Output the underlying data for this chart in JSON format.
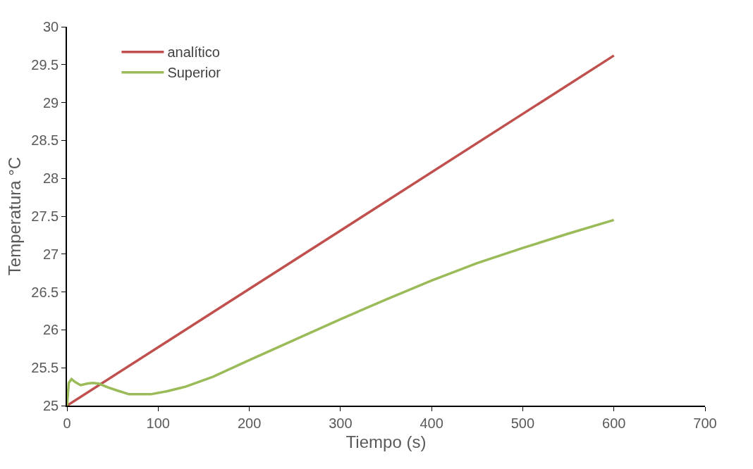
{
  "chart_data": {
    "type": "line",
    "xlabel": "Tiempo (s)",
    "ylabel": "Temperatura °C",
    "xlim": [
      0,
      700
    ],
    "ylim": [
      25,
      30
    ],
    "xticks": [
      0,
      100,
      200,
      300,
      400,
      500,
      600,
      700
    ],
    "yticks": [
      25,
      25.5,
      26,
      26.5,
      27,
      27.5,
      28,
      28.5,
      29,
      29.5,
      30
    ],
    "legend": "top left",
    "marker": "none",
    "line_style": "solid",
    "series": [
      {
        "name": "analítico",
        "color": "#c0504d",
        "x": [
          0,
          600
        ],
        "values": [
          25,
          29.62
        ]
      },
      {
        "name": "Superior",
        "color": "#9bbb59",
        "x": [
          0,
          2,
          5,
          9,
          15,
          22,
          28,
          35,
          45,
          55,
          68,
          80,
          92,
          110,
          130,
          160,
          200,
          250,
          300,
          350,
          400,
          450,
          500,
          550,
          600
        ],
        "values": [
          25,
          25.3,
          25.35,
          25.31,
          25.27,
          25.29,
          25.3,
          25.29,
          25.24,
          25.2,
          25.15,
          25.15,
          25.15,
          25.19,
          25.25,
          25.38,
          25.6,
          25.87,
          26.14,
          26.4,
          26.65,
          26.88,
          27.08,
          27.27,
          27.45
        ]
      }
    ]
  }
}
